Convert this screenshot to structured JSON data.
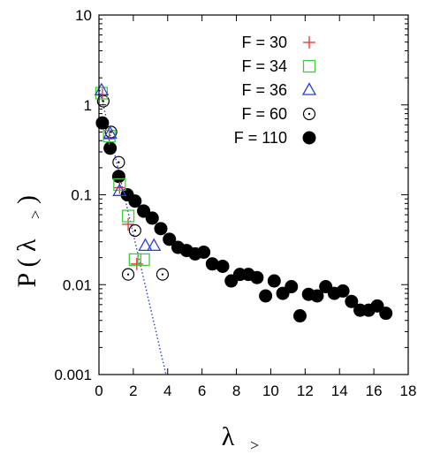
{
  "chart_data": {
    "type": "scatter",
    "xlabel_main": "λ",
    "xlabel_sub": ">",
    "ylabel": "P ( λ",
    "ylabel_sub": ">",
    "ylabel_close": ")",
    "xlim": [
      0,
      18
    ],
    "ylim": [
      0.001,
      10
    ],
    "y_scale": "log",
    "x_ticks": [
      0,
      2,
      4,
      6,
      8,
      10,
      12,
      14,
      16,
      18
    ],
    "x_tick_labels": [
      "0",
      "2",
      "4",
      "6",
      "8",
      "10",
      "12",
      "14",
      "16",
      "18"
    ],
    "y_ticks": [
      0.001,
      0.01,
      0.1,
      1,
      10
    ],
    "y_tick_labels": [
      "0.001",
      "0.01",
      "0.1",
      "1",
      "10"
    ],
    "legend_position": "top-right",
    "series": [
      {
        "name": "F = 30",
        "marker": "plus",
        "color": "#e8312f",
        "points": [
          [
            0.2,
            1.3
          ],
          [
            0.6,
            0.42
          ],
          [
            1.2,
            0.12
          ],
          [
            1.7,
            0.047
          ],
          [
            2.2,
            0.017
          ]
        ]
      },
      {
        "name": "F = 34",
        "marker": "square",
        "color": "#3ccf3c",
        "points": [
          [
            0.15,
            1.35
          ],
          [
            0.6,
            0.45
          ],
          [
            1.2,
            0.13
          ],
          [
            1.7,
            0.058
          ],
          [
            2.1,
            0.019
          ],
          [
            2.6,
            0.019
          ]
        ]
      },
      {
        "name": "F = 36",
        "marker": "triangle",
        "color": "#2a3fd6",
        "points": [
          [
            0.15,
            1.45
          ],
          [
            0.65,
            0.48
          ],
          [
            1.2,
            0.11
          ],
          [
            2.7,
            0.027
          ],
          [
            3.2,
            0.027
          ]
        ]
      },
      {
        "name": "F = 60",
        "marker": "circle-dot",
        "color": "#000000",
        "points": [
          [
            0.25,
            1.1
          ],
          [
            0.7,
            0.5
          ],
          [
            1.15,
            0.23
          ],
          [
            2.1,
            0.04
          ],
          [
            2.6,
            0.065
          ],
          [
            1.7,
            0.013
          ],
          [
            3.7,
            0.013
          ]
        ]
      },
      {
        "name": "F = 110",
        "marker": "filled-circle",
        "color": "#000000",
        "points": [
          [
            0.2,
            0.63
          ],
          [
            0.65,
            0.33
          ],
          [
            1.15,
            0.16
          ],
          [
            1.65,
            0.1
          ],
          [
            2.1,
            0.085
          ],
          [
            2.6,
            0.066
          ],
          [
            3.1,
            0.055
          ],
          [
            3.6,
            0.042
          ],
          [
            4.1,
            0.032
          ],
          [
            4.6,
            0.026
          ],
          [
            5.1,
            0.024
          ],
          [
            5.6,
            0.022
          ],
          [
            6.1,
            0.023
          ],
          [
            6.6,
            0.017
          ],
          [
            7.2,
            0.016
          ],
          [
            7.7,
            0.011
          ],
          [
            8.2,
            0.013
          ],
          [
            8.7,
            0.013
          ],
          [
            9.2,
            0.012
          ],
          [
            9.7,
            0.0075
          ],
          [
            10.2,
            0.011
          ],
          [
            10.7,
            0.008
          ],
          [
            11.2,
            0.0095
          ],
          [
            11.7,
            0.0045
          ],
          [
            12.2,
            0.0078
          ],
          [
            12.7,
            0.0075
          ],
          [
            13.2,
            0.0095
          ],
          [
            13.7,
            0.008
          ],
          [
            14.2,
            0.0085
          ],
          [
            14.7,
            0.0065
          ],
          [
            15.2,
            0.0052
          ],
          [
            15.7,
            0.0052
          ],
          [
            16.2,
            0.0058
          ],
          [
            16.7,
            0.0048
          ]
        ]
      }
    ],
    "fit_line": {
      "style": "dotted",
      "color": "#2a3fd6",
      "points": [
        [
          0,
          1.6
        ],
        [
          3.9,
          0.001
        ]
      ]
    }
  }
}
